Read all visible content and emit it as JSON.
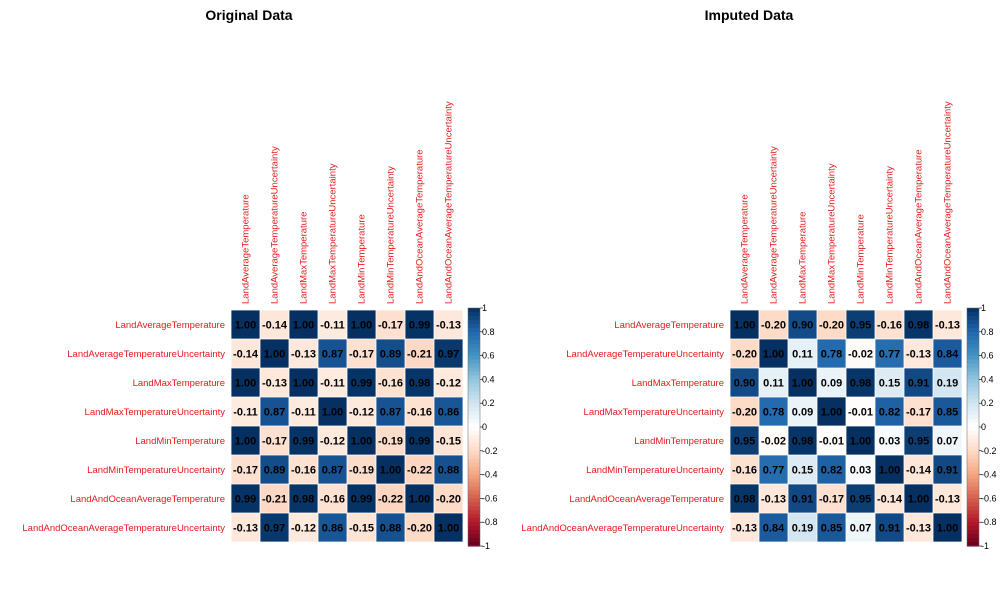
{
  "chart_data": [
    {
      "type": "heatmap",
      "title": "Original Data",
      "variables": [
        "LandAverageTemperature",
        "LandAverageTemperatureUncertainty",
        "LandMaxTemperature",
        "LandMaxTemperatureUncertainty",
        "LandMinTemperature",
        "LandMinTemperatureUncertainty",
        "LandAndOceanAverageTemperature",
        "LandAndOceanAverageTemperatureUncertainty"
      ],
      "matrix": [
        [
          1.0,
          -0.14,
          1.0,
          -0.11,
          1.0,
          -0.17,
          0.99,
          -0.13
        ],
        [
          -0.14,
          1.0,
          -0.13,
          0.87,
          -0.17,
          0.89,
          -0.21,
          0.97
        ],
        [
          1.0,
          -0.13,
          1.0,
          -0.11,
          0.99,
          -0.16,
          0.98,
          -0.12
        ],
        [
          -0.11,
          0.87,
          -0.11,
          1.0,
          -0.12,
          0.87,
          -0.16,
          0.86
        ],
        [
          1.0,
          -0.17,
          0.99,
          -0.12,
          1.0,
          -0.19,
          0.99,
          -0.15
        ],
        [
          -0.17,
          0.89,
          -0.16,
          0.87,
          -0.19,
          1.0,
          -0.22,
          0.88
        ],
        [
          0.99,
          -0.21,
          0.98,
          -0.16,
          0.99,
          -0.22,
          1.0,
          -0.2
        ],
        [
          -0.13,
          0.97,
          -0.12,
          0.86,
          -0.15,
          0.88,
          -0.2,
          1.0
        ]
      ],
      "value_range": [
        -1,
        1
      ],
      "colorbar_ticks": [
        "1",
        "0.8",
        "0.6",
        "0.4",
        "0.2",
        "0",
        "-0.2",
        "-0.4",
        "-0.6",
        "-0.8",
        "-1"
      ]
    },
    {
      "type": "heatmap",
      "title": "Imputed Data",
      "variables": [
        "LandAverageTemperature",
        "LandAverageTemperatureUncertainty",
        "LandMaxTemperature",
        "LandMaxTemperatureUncertainty",
        "LandMinTemperature",
        "LandMinTemperatureUncertainty",
        "LandAndOceanAverageTemperature",
        "LandAndOceanAverageTemperatureUncertainty"
      ],
      "matrix": [
        [
          1.0,
          -0.2,
          0.9,
          -0.2,
          0.95,
          -0.16,
          0.98,
          -0.13
        ],
        [
          -0.2,
          1.0,
          0.11,
          0.78,
          -0.02,
          0.77,
          -0.13,
          0.84
        ],
        [
          0.9,
          0.11,
          1.0,
          0.09,
          0.98,
          0.15,
          0.91,
          0.19
        ],
        [
          -0.2,
          0.78,
          0.09,
          1.0,
          -0.01,
          0.82,
          -0.17,
          0.85
        ],
        [
          0.95,
          -0.02,
          0.98,
          -0.01,
          1.0,
          0.03,
          0.95,
          0.07
        ],
        [
          -0.16,
          0.77,
          0.15,
          0.82,
          0.03,
          1.0,
          -0.14,
          0.91
        ],
        [
          0.98,
          -0.13,
          0.91,
          -0.17,
          0.95,
          -0.14,
          1.0,
          -0.13
        ],
        [
          -0.13,
          0.84,
          0.19,
          0.85,
          0.07,
          0.91,
          -0.13,
          1.0
        ]
      ],
      "value_range": [
        -1,
        1
      ],
      "colorbar_ticks": [
        "1",
        "0.8",
        "0.6",
        "0.4",
        "0.2",
        "0",
        "-0.2",
        "-0.4",
        "-0.6",
        "-0.8",
        "-1"
      ]
    }
  ],
  "colors": {
    "label": "#e41a1c",
    "scale": [
      "#67001f",
      "#b2182b",
      "#d6604d",
      "#f4a582",
      "#fddbc7",
      "#ffffff",
      "#d1e5f0",
      "#92c5de",
      "#4393c3",
      "#2166ac",
      "#053061"
    ]
  }
}
